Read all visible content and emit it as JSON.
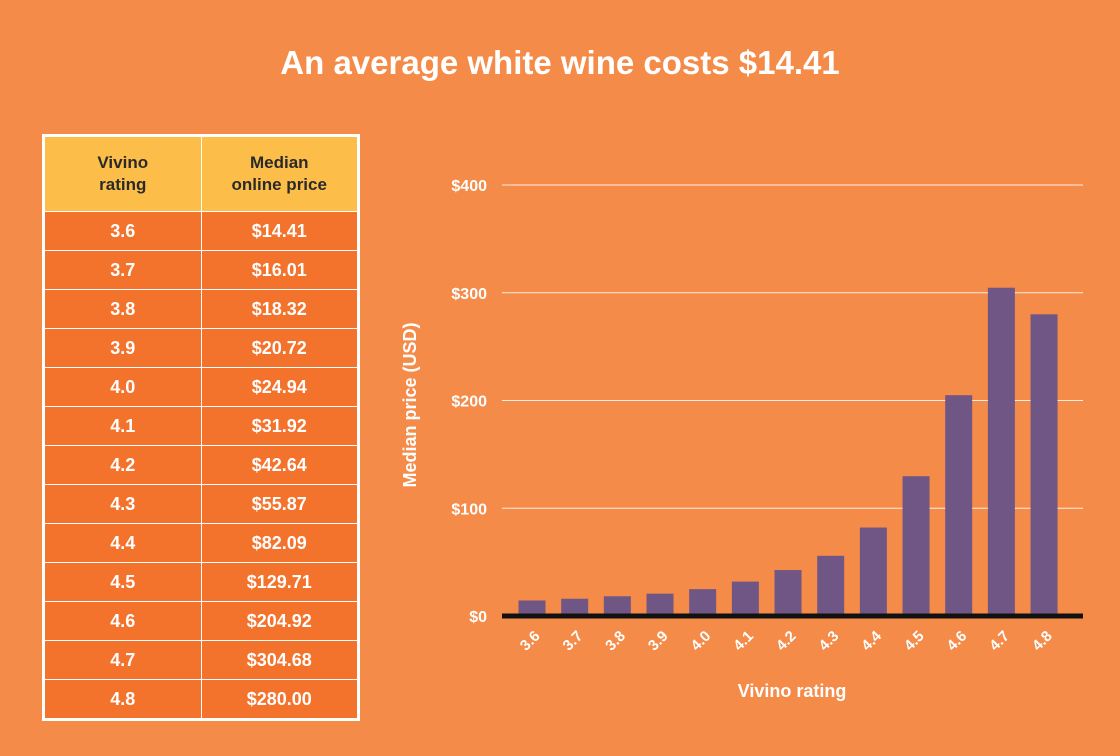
{
  "title": "An average white wine costs $14.41",
  "table": {
    "headers": [
      "Vivino rating",
      "Median online price"
    ],
    "header_lines": [
      [
        "Vivino",
        "rating"
      ],
      [
        "Median",
        "online price"
      ]
    ],
    "rows": [
      [
        "3.6",
        "$14.41"
      ],
      [
        "3.7",
        "$16.01"
      ],
      [
        "3.8",
        "$18.32"
      ],
      [
        "3.9",
        "$20.72"
      ],
      [
        "4.0",
        "$24.94"
      ],
      [
        "4.1",
        "$31.92"
      ],
      [
        "4.2",
        "$42.64"
      ],
      [
        "4.3",
        "$55.87"
      ],
      [
        "4.4",
        "$82.09"
      ],
      [
        "4.5",
        "$129.71"
      ],
      [
        "4.6",
        "$204.92"
      ],
      [
        "4.7",
        "$304.68"
      ],
      [
        "4.8",
        "$280.00"
      ]
    ]
  },
  "chart_data": {
    "type": "bar",
    "categories": [
      "3.6",
      "3.7",
      "3.8",
      "3.9",
      "4.0",
      "4.1",
      "4.2",
      "4.3",
      "4.4",
      "4.5",
      "4.6",
      "4.7",
      "4.8"
    ],
    "values": [
      14.41,
      16.01,
      18.32,
      20.72,
      24.94,
      31.92,
      42.64,
      55.87,
      82.09,
      129.71,
      204.92,
      304.68,
      280.0
    ],
    "xlabel": "Vivino rating",
    "ylabel": "Median price (USD)",
    "ylim": [
      0,
      400
    ],
    "yticks": [
      0,
      100,
      200,
      300,
      400
    ],
    "ytick_labels": [
      "$0",
      "$100",
      "$200",
      "$300",
      "$400"
    ],
    "grid": true,
    "bar_color": "#6f5685"
  },
  "colors": {
    "background": "#f58b48",
    "table_header": "#fcbe48",
    "table_cell": "#f4732c",
    "bar": "#6f5685",
    "baseline": "#111111"
  }
}
